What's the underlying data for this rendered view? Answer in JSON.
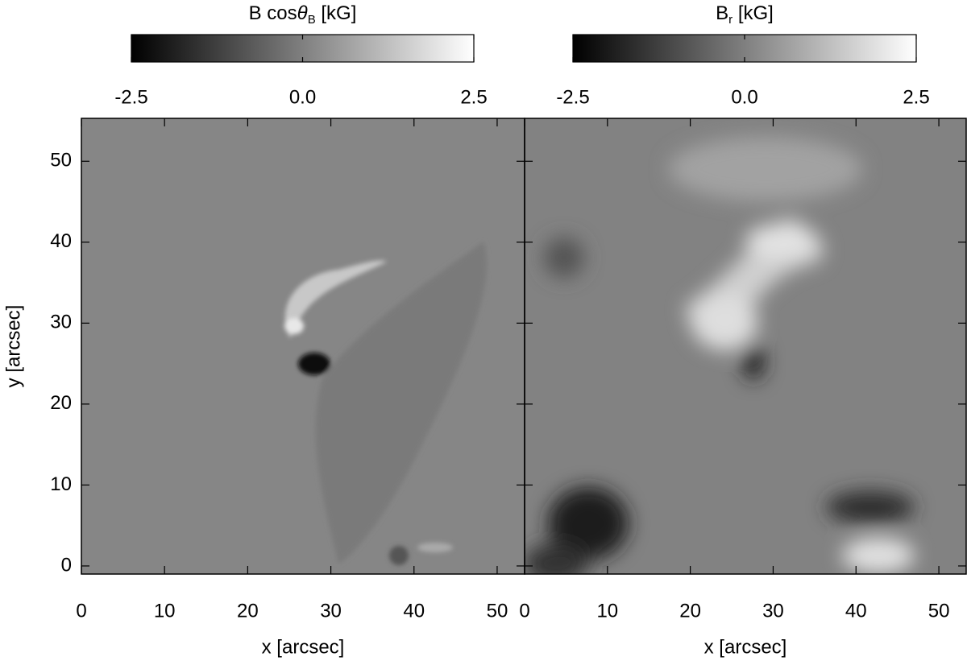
{
  "chart_data": [
    {
      "type": "image",
      "colorbar": {
        "label_parts": [
          "B cos",
          "θ",
          "B",
          " [kG]"
        ],
        "lim": [
          -2.5,
          2.5
        ],
        "ticks": [
          -2.5,
          {
            "value": 0,
            "label": "0.0"
          },
          2.5
        ],
        "colormap": [
          "#000000",
          "#ffffff"
        ]
      },
      "xlabel": "x [arcsec]",
      "ylabel": "y [arcsec]",
      "xlim": [
        0,
        53.3
      ],
      "ylim": [
        -1,
        55.3
      ],
      "xticks": [
        0,
        10,
        20,
        30,
        40,
        50
      ],
      "yticks": [
        0,
        10,
        20,
        30,
        40,
        50
      ]
    },
    {
      "type": "image",
      "colorbar": {
        "label_parts": [
          "B",
          "r",
          "  [kG]"
        ],
        "lim": [
          -2.5,
          2.5
        ],
        "ticks": [
          -2.5,
          {
            "value": 0,
            "label": "0.0"
          },
          2.5
        ],
        "colormap": [
          "#000000",
          "#ffffff"
        ]
      },
      "xlabel": "x [arcsec]",
      "xlim": [
        0,
        53.3
      ],
      "ylim": [
        -1,
        55.3
      ],
      "xticks": [
        0,
        10,
        20,
        30,
        40,
        50
      ],
      "yticks": [
        0,
        10,
        20,
        30,
        40,
        50
      ]
    }
  ]
}
